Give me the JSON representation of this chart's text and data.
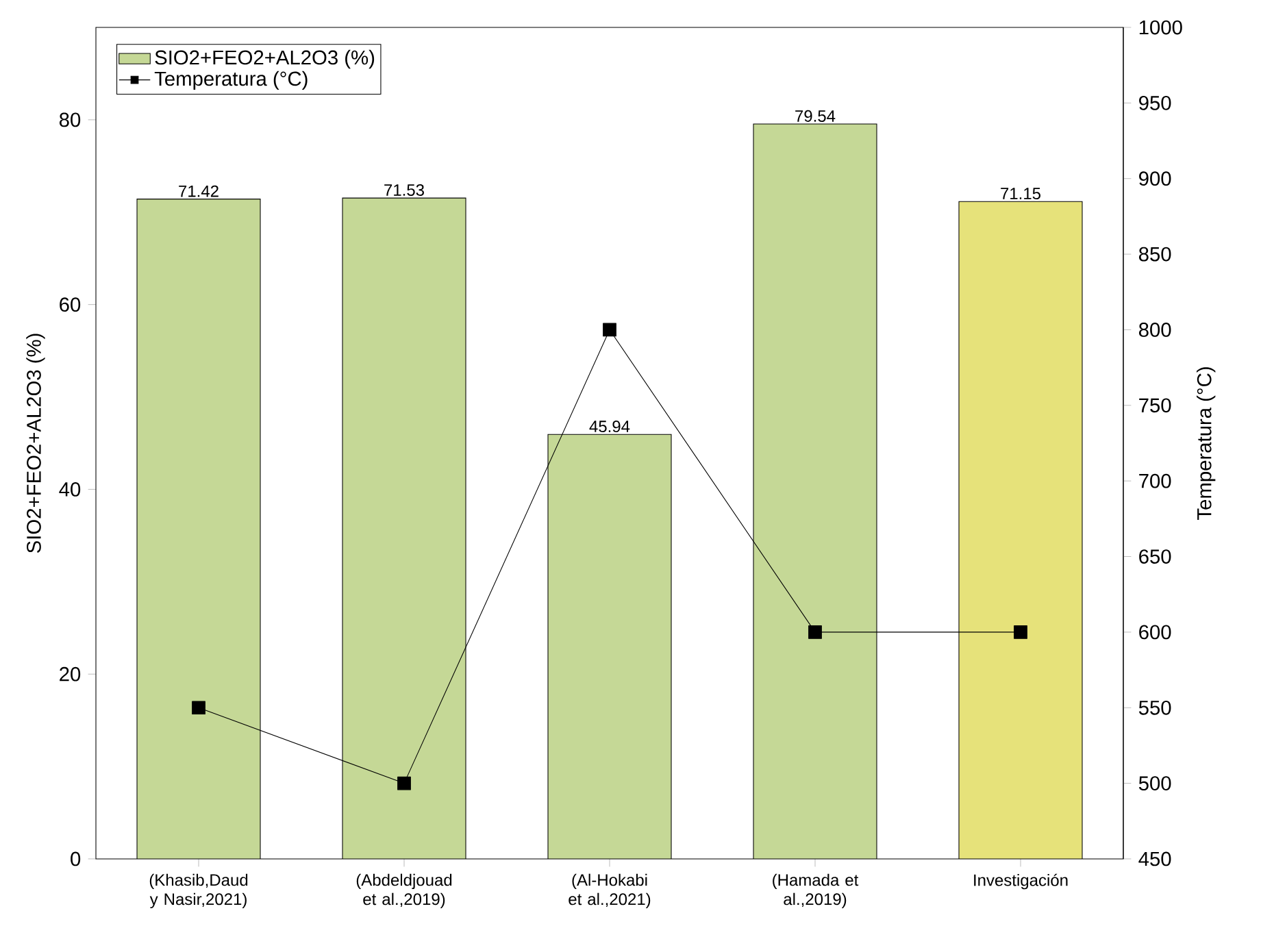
{
  "chart_data": {
    "type": "bar",
    "categories": [
      "(Khasib,Daud y Nasir,2021)",
      "(Abdeldjouad et al.,2019)",
      "(Al-Hokabi et al.,2021)",
      "(Hamada et al.,2019)",
      "Investigación"
    ],
    "series": [
      {
        "name": "SIO2+FEO2+AL2O3 (%)",
        "colors": [
          "#c5d896",
          "#c5d896",
          "#c5d896",
          "#c5d896",
          "#e6e27a"
        ],
        "values": [
          71.42,
          71.53,
          45.94,
          79.54,
          71.15
        ],
        "value_labels": [
          "71.42",
          "71.53",
          "45.94",
          "79.54",
          "71.15"
        ]
      },
      {
        "name": "Temperatura (°C)",
        "type": "line",
        "axis": "y2",
        "color": "#000000",
        "marker": "square",
        "values": [
          550,
          500,
          800,
          600,
          600
        ]
      }
    ],
    "ylabel": "SIO2+FEO2+AL2O3 (%)",
    "y2label": "Temperatura (°C)",
    "ylim": [
      0,
      90
    ],
    "yticks": [
      0,
      20,
      40,
      60,
      80
    ],
    "y2lim": [
      450,
      1000
    ],
    "y2ticks": [
      450,
      500,
      550,
      600,
      650,
      700,
      750,
      800,
      850,
      900,
      950,
      1000
    ],
    "legend": "top left"
  }
}
